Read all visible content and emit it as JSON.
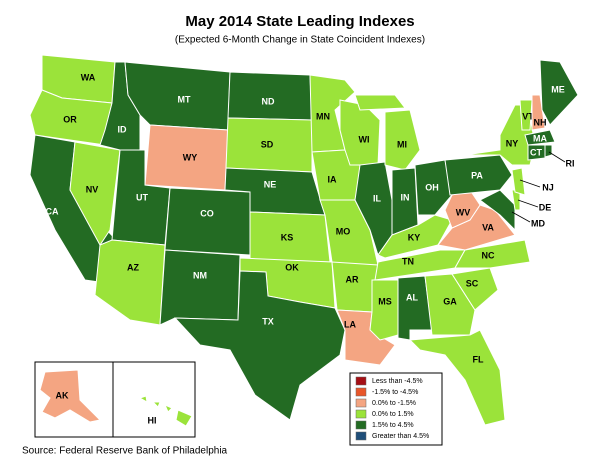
{
  "map": {
    "title": "May 2014 State Leading Indexes",
    "subtitle": "(Expected 6-Month Change in State Coincident Indexes)",
    "source": "Source: Federal Reserve Bank of Philadelphia",
    "legend": [
      {
        "label": "Less than -4.5%",
        "color": "#a50f15"
      },
      {
        "label": "-1.5% to -4.5%",
        "color": "#e8562a"
      },
      {
        "label": "0.0% to -1.5%",
        "color": "#f4a582"
      },
      {
        "label": "0.0% to  1.5%",
        "color": "#9be33a"
      },
      {
        "label": "1.5% to  4.5%",
        "color": "#236b23"
      },
      {
        "label": "Greater than 4.5%",
        "color": "#1f4e79"
      }
    ],
    "states": [
      {
        "label": "WA",
        "color": "#9be33a"
      },
      {
        "label": "OR",
        "color": "#9be33a"
      },
      {
        "label": "CA",
        "color": "#236b23"
      },
      {
        "label": "NV",
        "color": "#9be33a"
      },
      {
        "label": "ID",
        "color": "#236b23"
      },
      {
        "label": "MT",
        "color": "#236b23"
      },
      {
        "label": "WY",
        "color": "#f4a582"
      },
      {
        "label": "UT",
        "color": "#236b23"
      },
      {
        "label": "AZ",
        "color": "#9be33a"
      },
      {
        "label": "CO",
        "color": "#236b23"
      },
      {
        "label": "NM",
        "color": "#236b23"
      },
      {
        "label": "ND",
        "color": "#236b23"
      },
      {
        "label": "SD",
        "color": "#9be33a"
      },
      {
        "label": "NE",
        "color": "#236b23"
      },
      {
        "label": "KS",
        "color": "#9be33a"
      },
      {
        "label": "OK",
        "color": "#9be33a"
      },
      {
        "label": "TX",
        "color": "#236b23"
      },
      {
        "label": "MN",
        "color": "#9be33a"
      },
      {
        "label": "IA",
        "color": "#9be33a"
      },
      {
        "label": "MO",
        "color": "#9be33a"
      },
      {
        "label": "AR",
        "color": "#9be33a"
      },
      {
        "label": "LA",
        "color": "#f4a582"
      },
      {
        "label": "WI",
        "color": "#9be33a"
      },
      {
        "label": "IL",
        "color": "#236b23"
      },
      {
        "label": "MI",
        "color": "#9be33a"
      },
      {
        "label": "IN",
        "color": "#236b23"
      },
      {
        "label": "OH",
        "color": "#236b23"
      },
      {
        "label": "KY",
        "color": "#9be33a"
      },
      {
        "label": "TN",
        "color": "#9be33a"
      },
      {
        "label": "MS",
        "color": "#9be33a"
      },
      {
        "label": "AL",
        "color": "#236b23"
      },
      {
        "label": "GA",
        "color": "#9be33a"
      },
      {
        "label": "FL",
        "color": "#9be33a"
      },
      {
        "label": "SC",
        "color": "#9be33a"
      },
      {
        "label": "NC",
        "color": "#9be33a"
      },
      {
        "label": "VA",
        "color": "#f4a582"
      },
      {
        "label": "WV",
        "color": "#f4a582"
      },
      {
        "label": "PA",
        "color": "#236b23"
      },
      {
        "label": "NY",
        "color": "#9be33a"
      },
      {
        "label": "MD",
        "color": "#236b23"
      },
      {
        "label": "DE",
        "color": "#9be33a"
      },
      {
        "label": "NJ",
        "color": "#9be33a"
      },
      {
        "label": "VT",
        "color": "#9be33a"
      },
      {
        "label": "NH",
        "color": "#f4a582"
      },
      {
        "label": "ME",
        "color": "#236b23"
      },
      {
        "label": "MA",
        "color": "#236b23"
      },
      {
        "label": "CT",
        "color": "#236b23"
      },
      {
        "label": "RI",
        "color": "#236b23"
      },
      {
        "label": "AK",
        "color": "#f4a582"
      },
      {
        "label": "HI",
        "color": "#9be33a"
      }
    ]
  }
}
